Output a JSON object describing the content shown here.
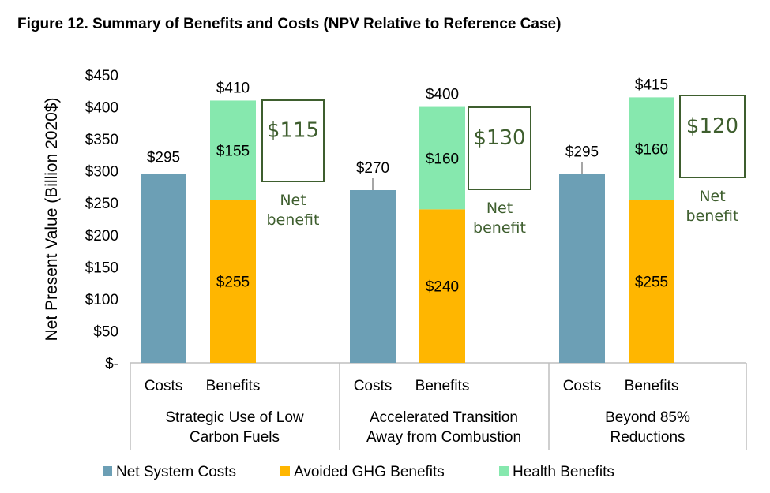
{
  "title": "Figure 12. Summary of Benefits and Costs (NPV Relative to Reference Case)",
  "chart_data": {
    "type": "bar",
    "stacked": true,
    "ylabel": "Net Present Value (Billion 2020$)",
    "ylim": [
      0,
      450
    ],
    "yticks": [
      0,
      50,
      100,
      150,
      200,
      250,
      300,
      350,
      400,
      450
    ],
    "ytick_labels": [
      "$-",
      "$50",
      "$100",
      "$150",
      "$200",
      "$250",
      "$300",
      "$350",
      "$400",
      "$450"
    ],
    "groups": [
      {
        "name": "Strategic Use of Low Carbon Fuels",
        "lines": [
          "Strategic Use of Low",
          "Carbon Fuels"
        ],
        "costs": 295,
        "costs_label": "$295",
        "ghg": 255,
        "ghg_label": "$255",
        "health": 155,
        "health_label": "$155",
        "total_label": "$410",
        "net_benefit": "$115"
      },
      {
        "name": "Accelerated Transition Away from Combustion",
        "lines": [
          "Accelerated Transition",
          "Away from Combustion"
        ],
        "costs": 270,
        "costs_label": "$270",
        "ghg": 240,
        "ghg_label": "$240",
        "health": 160,
        "health_label": "$160",
        "total_label": "$400",
        "net_benefit": "$130"
      },
      {
        "name": "Beyond 85% Reductions",
        "lines": [
          "Beyond 85%",
          "Reductions"
        ],
        "costs": 295,
        "costs_label": "$295",
        "ghg": 255,
        "ghg_label": "$255",
        "health": 160,
        "health_label": "$160",
        "total_label": "$415",
        "net_benefit": "$120"
      }
    ],
    "subcategories": [
      "Costs",
      "Benefits"
    ],
    "net_benefit_label": [
      "Net",
      "benefit"
    ],
    "legend": [
      {
        "name": "Net System Costs",
        "color": "#6c9fb5"
      },
      {
        "name": "Avoided GHG Benefits",
        "color": "#ffb600"
      },
      {
        "name": "Health Benefits",
        "color": "#86e8ae"
      }
    ],
    "legend_position": "bottom",
    "accent_color": "#3e5e2e"
  }
}
